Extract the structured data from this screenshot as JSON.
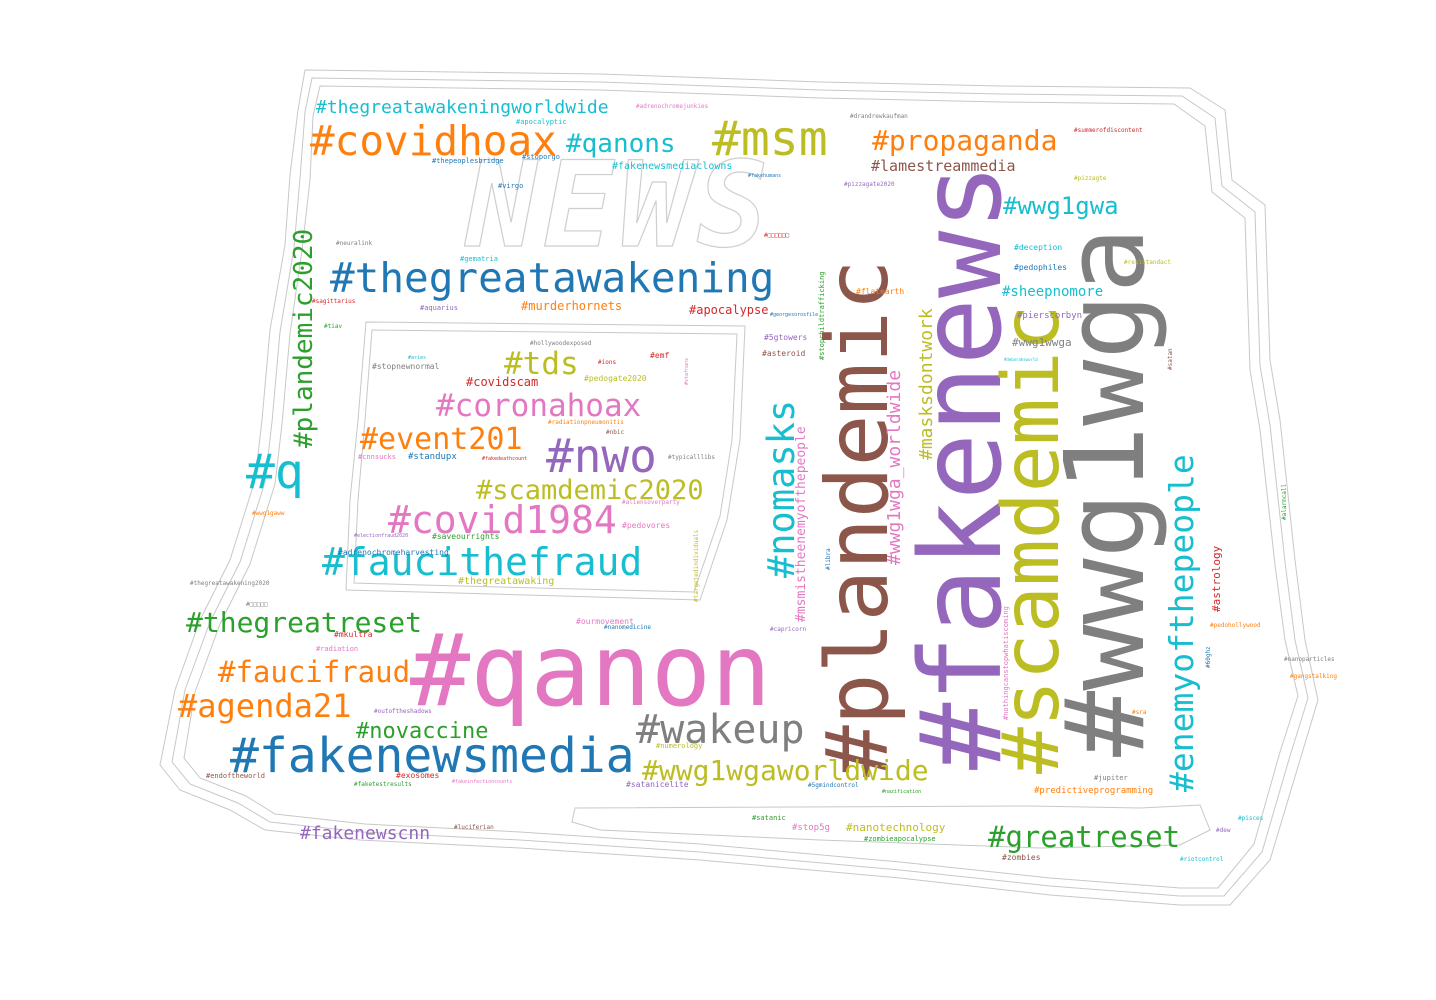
{
  "background": "#ffffff",
  "mask_text": "NEWS",
  "words": [
    {
      "text": "#qanon",
      "color": "#e377c2"
    },
    {
      "text": "#fakenews",
      "color": "#9467bd"
    },
    {
      "text": "#wwg1wga",
      "color": "#7f7f7f"
    },
    {
      "text": "#plandemic",
      "color": "#8c564b"
    },
    {
      "text": "#scamdemic",
      "color": "#bcbd22"
    },
    {
      "text": "#fakenewsmedia",
      "color": "#1f77b4"
    },
    {
      "text": "#thegreatawakening",
      "color": "#1f77b4"
    },
    {
      "text": "#msm",
      "color": "#bcbd22"
    },
    {
      "text": "#covidhoax",
      "color": "#ff7f0e"
    },
    {
      "text": "#nwo",
      "color": "#9467bd"
    },
    {
      "text": "#enemyofthepeople",
      "color": "#17becf"
    },
    {
      "text": "#wakeup",
      "color": "#7f7f7f"
    },
    {
      "text": "#faucithefraud",
      "color": "#17becf"
    },
    {
      "text": "#covid1984",
      "color": "#e377c2"
    },
    {
      "text": "#nomasks",
      "color": "#17becf"
    },
    {
      "text": "#q",
      "color": "#17becf"
    },
    {
      "text": "#greatreset",
      "color": "#2ca02c"
    },
    {
      "text": "#wwg1wgaworldwide",
      "color": "#bcbd22"
    },
    {
      "text": "#agenda21",
      "color": "#ff7f0e"
    },
    {
      "text": "#propaganda",
      "color": "#ff7f0e"
    },
    {
      "text": "#coronahoax",
      "color": "#e377c2"
    },
    {
      "text": "#faucifraud",
      "color": "#ff7f0e"
    },
    {
      "text": "#thegreatreset",
      "color": "#2ca02c"
    },
    {
      "text": "#event201",
      "color": "#ff7f0e"
    },
    {
      "text": "#scamdemic2020",
      "color": "#bcbd22"
    },
    {
      "text": "#plandemic2020",
      "color": "#2ca02c"
    },
    {
      "text": "#qanons",
      "color": "#17becf"
    },
    {
      "text": "#wwg1gwa",
      "color": "#17becf"
    },
    {
      "text": "#tds",
      "color": "#bcbd22"
    },
    {
      "text": "#novaccine",
      "color": "#2ca02c"
    },
    {
      "text": "#thegreatawakeningworldwide",
      "color": "#17becf"
    },
    {
      "text": "#masksdontwork",
      "color": "#bcbd22"
    },
    {
      "text": "#wwg1wga_worldwide",
      "color": "#e377c2"
    },
    {
      "text": "#fakenewscnn",
      "color": "#9467bd"
    },
    {
      "text": "#lamestreammedia",
      "color": "#8c564b"
    },
    {
      "text": "#msmistheenemyofthepeople",
      "color": "#e377c2"
    },
    {
      "text": "#sheepnomore",
      "color": "#17becf"
    },
    {
      "text": "#murderhornets",
      "color": "#ff7f0e"
    },
    {
      "text": "#apocalypse",
      "color": "#d62728"
    },
    {
      "text": "#wwg1wwga",
      "color": "#7f7f7f"
    },
    {
      "text": "#covidscam",
      "color": "#d62728"
    },
    {
      "text": "#astrology",
      "color": "#d62728"
    },
    {
      "text": "#nanotechnology",
      "color": "#bcbd22"
    },
    {
      "text": "#fakenewsmediaclowns",
      "color": "#17becf"
    },
    {
      "text": "#pierscorbyn",
      "color": "#9467bd"
    },
    {
      "text": "#thegreatawaking",
      "color": "#bcbd22"
    },
    {
      "text": "#predictiveprogramming",
      "color": "#ff7f0e"
    },
    {
      "text": "#stopnewnormal",
      "color": "#7f7f7f"
    },
    {
      "text": "#standupx",
      "color": "#1f77b4"
    },
    {
      "text": "#saveourrights",
      "color": "#2ca02c"
    },
    {
      "text": "#adrenochromeharvesting",
      "color": "#1f77b4"
    },
    {
      "text": "#pedogate2020",
      "color": "#bcbd22"
    },
    {
      "text": "#pedovores",
      "color": "#e377c2"
    },
    {
      "text": "#flatearth",
      "color": "#ff7f0e"
    },
    {
      "text": "#deception",
      "color": "#17becf"
    },
    {
      "text": "#pedophiles",
      "color": "#1f77b4"
    },
    {
      "text": "#stop5g",
      "color": "#e377c2"
    },
    {
      "text": "#satanicelite",
      "color": "#9467bd"
    },
    {
      "text": "#zombieapocalypse",
      "color": "#2ca02c"
    },
    {
      "text": "#satanic",
      "color": "#2ca02c"
    },
    {
      "text": "#zombies",
      "color": "#8c564b"
    },
    {
      "text": "#mkultra",
      "color": "#d62728"
    },
    {
      "text": "#ourmovement",
      "color": "#e377c2"
    },
    {
      "text": "#exosomes",
      "color": "#d62728"
    },
    {
      "text": "#asteroid",
      "color": "#8c564b"
    },
    {
      "text": "#5gtowers",
      "color": "#9467bd"
    },
    {
      "text": "#emf",
      "color": "#d62728"
    },
    {
      "text": "#cnnsucks",
      "color": "#e377c2"
    },
    {
      "text": "#gematria",
      "color": "#17becf"
    },
    {
      "text": "#thepeoplesbridge",
      "color": "#1f77b4"
    },
    {
      "text": "#stoporgo",
      "color": "#1f77b4"
    },
    {
      "text": "#apocalyptic",
      "color": "#17becf"
    },
    {
      "text": "#adrenochromejunkies",
      "color": "#e377c2"
    },
    {
      "text": "#drandrewkaufman",
      "color": "#7f7f7f"
    },
    {
      "text": "#summerofdiscontent",
      "color": "#d62728"
    },
    {
      "text": "#virgo",
      "color": "#1f77b4"
    },
    {
      "text": "#fakehumans",
      "color": "#1f77b4"
    },
    {
      "text": "#pizzagate2020",
      "color": "#9467bd"
    },
    {
      "text": "#pizzagte",
      "color": "#bcbd22"
    },
    {
      "text": "#neuralink",
      "color": "#7f7f7f"
    },
    {
      "text": "#sagittarius",
      "color": "#d62728"
    },
    {
      "text": "#aquarius",
      "color": "#9467bd"
    },
    {
      "text": "#tiav",
      "color": "#2ca02c"
    },
    {
      "text": "#hollywoodexposed",
      "color": "#7f7f7f"
    },
    {
      "text": "#aries",
      "color": "#17becf"
    },
    {
      "text": "#ions",
      "color": "#d62728"
    },
    {
      "text": "#radiationpneumonitis",
      "color": "#ff7f0e"
    },
    {
      "text": "#nbic",
      "color": "#8c564b"
    },
    {
      "text": "#fakedeathcount",
      "color": "#d62728"
    },
    {
      "text": "#typicalllibs",
      "color": "#7f7f7f"
    },
    {
      "text": "#aliensoverparty",
      "color": "#e377c2"
    },
    {
      "text": "#wwg1gaww",
      "color": "#ff7f0e"
    },
    {
      "text": "#electionfraud2020",
      "color": "#9467bd"
    },
    {
      "text": "#thegreatawakening2020",
      "color": "#7f7f7f"
    },
    {
      "text": "#radiation",
      "color": "#e377c2"
    },
    {
      "text": "#nanomedicine",
      "color": "#1f77b4"
    },
    {
      "text": "#capricorn",
      "color": "#9467bd"
    },
    {
      "text": "#outoftheshadows",
      "color": "#9467bd"
    },
    {
      "text": "#numerology",
      "color": "#bcbd22"
    },
    {
      "text": "#endoftheworld",
      "color": "#8c564b"
    },
    {
      "text": "#faketestresults",
      "color": "#2ca02c"
    },
    {
      "text": "#fakeinfectioncounts",
      "color": "#e377c2"
    },
    {
      "text": "#5gmindcontrol",
      "color": "#1f77b4"
    },
    {
      "text": "#nazification",
      "color": "#2ca02c"
    },
    {
      "text": "#luciferian",
      "color": "#8c564b"
    },
    {
      "text": "#jupiter",
      "color": "#7f7f7f"
    },
    {
      "text": "#sra",
      "color": "#ff7f0e"
    },
    {
      "text": "#pedohollywood",
      "color": "#ff7f0e"
    },
    {
      "text": "#gangstalking",
      "color": "#ff7f0e"
    },
    {
      "text": "#nanoparticles",
      "color": "#7f7f7f"
    },
    {
      "text": "#pisces",
      "color": "#17becf"
    },
    {
      "text": "#dew",
      "color": "#9467bd"
    },
    {
      "text": "#riotcontrol",
      "color": "#17becf"
    },
    {
      "text": "#resistandact",
      "color": "#bcbd22"
    },
    {
      "text": "#satan",
      "color": "#8c564b"
    },
    {
      "text": "#stopchildtrafficking",
      "color": "#2ca02c"
    },
    {
      "text": "#libra",
      "color": "#1f77b4"
    },
    {
      "text": "#georgesorosfile",
      "color": "#1f77b4"
    },
    {
      "text": "#targetedindividuals",
      "color": "#bcbd22"
    },
    {
      "text": "#stafnans",
      "color": "#e377c2"
    },
    {
      "text": "#nothingcanstopwhatiscoming",
      "color": "#e377c2"
    },
    {
      "text": "#60ghz",
      "color": "#1f77b4"
    },
    {
      "text": "#alarmcall",
      "color": "#2ca02c"
    },
    {
      "text": "#□□□□□□",
      "color": "#d62728"
    },
    {
      "text": "#□□□□□",
      "color": "#7f7f7f"
    },
    {
      "text": "#deborahsworld",
      "color": "#17becf"
    }
  ]
}
